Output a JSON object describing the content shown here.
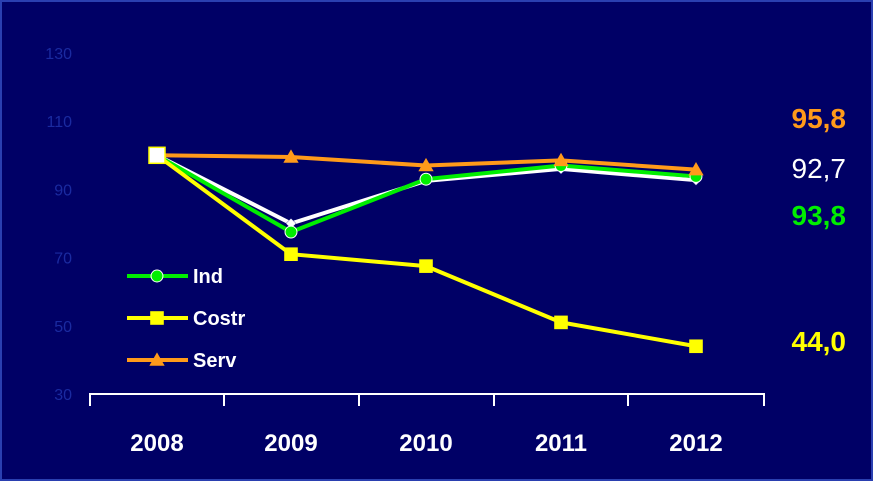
{
  "chart_data": {
    "type": "line",
    "categories": [
      "2008",
      "2009",
      "2010",
      "2011",
      "2012"
    ],
    "ylim": [
      30,
      130
    ],
    "yticks": [
      30,
      50,
      70,
      90,
      110,
      130
    ],
    "grid": false,
    "legend": "bottom-left inside",
    "series": [
      {
        "name": "",
        "color": "#ffffff",
        "marker": "diamond",
        "values": [
          100,
          80,
          92.5,
          96,
          92.7
        ]
      },
      {
        "name": "Ind",
        "color": "#00ee00",
        "marker": "circle",
        "values": [
          100,
          77.5,
          93,
          97,
          93.8
        ]
      },
      {
        "name": "Costr",
        "color": "#ffff00",
        "marker": "square",
        "values": [
          100,
          71,
          67.5,
          51,
          44.0
        ]
      },
      {
        "name": "Serv",
        "color": "#ff9a1a",
        "marker": "triangle",
        "values": [
          100,
          99.5,
          97,
          98.5,
          95.8
        ]
      }
    ],
    "end_labels": [
      {
        "text": "95,8",
        "color": "#ff9a1a",
        "bold": true
      },
      {
        "text": "92,7",
        "color": "#ffffff",
        "bold": false
      },
      {
        "text": "93,8",
        "color": "#00ee00",
        "bold": true
      },
      {
        "text": "44,0",
        "color": "#ffff00",
        "bold": true
      }
    ]
  }
}
